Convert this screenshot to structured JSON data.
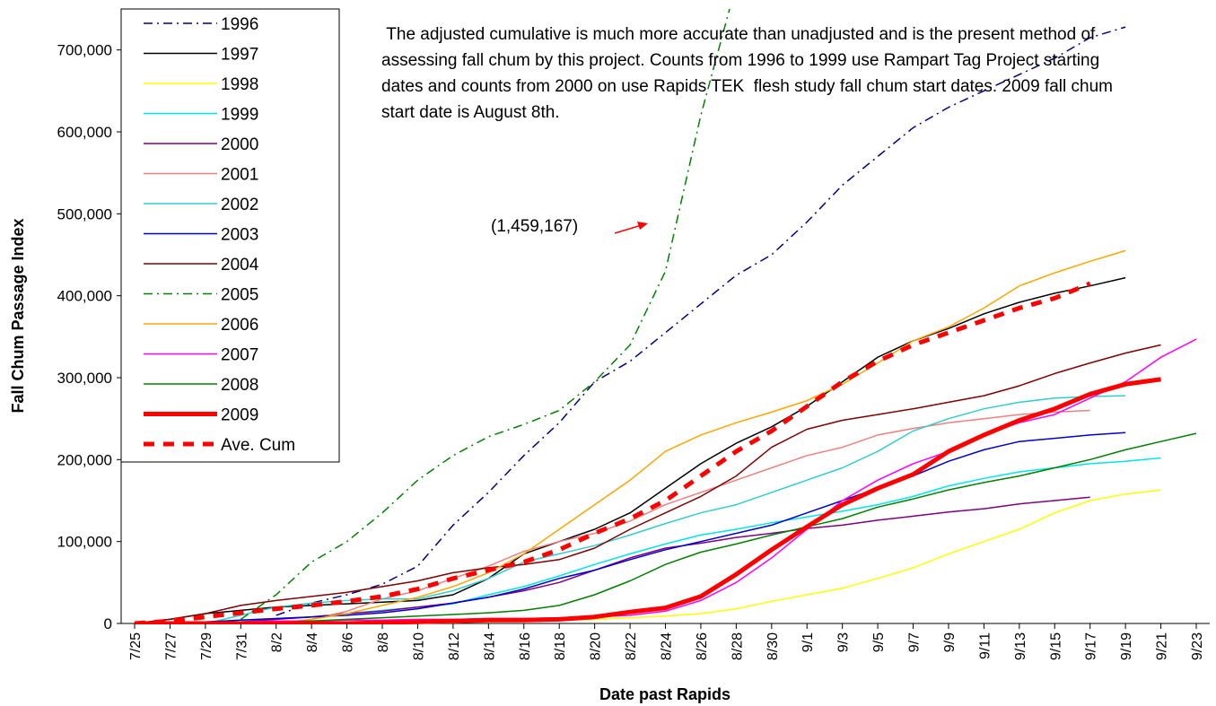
{
  "chart_data": {
    "type": "line",
    "y_label": "Fall Chum Passage Index",
    "x_label": "Date past Rapids",
    "annotations": [
      " The adjusted cumulative is much more accurate than unadjusted and is the present method of assessing fall chum by this project. Counts from 1996 to 1999 use Rampart Tag Project starting dates and counts from 2000 on use Rapids TEK  flesh study fall chum start dates. 2009 fall chum start date is August 8th.",
      "(1,459,167)"
    ],
    "categories": [
      "7/25",
      "7/27",
      "7/29",
      "7/31",
      "8/2",
      "8/4",
      "8/6",
      "8/8",
      "8/10",
      "8/12",
      "8/14",
      "8/16",
      "8/18",
      "8/20",
      "8/22",
      "8/24",
      "8/26",
      "8/28",
      "8/30",
      "9/1",
      "9/3",
      "9/5",
      "9/7",
      "9/9",
      "9/11",
      "9/13",
      "9/15",
      "9/17",
      "9/19",
      "9/21",
      "9/23"
    ],
    "ylim": [
      0,
      750000
    ],
    "yticks": [
      0,
      {
        "value": 100000,
        "label": "100,000"
      },
      {
        "value": 200000,
        "label": "200,000"
      },
      {
        "value": 300000,
        "label": "300,000"
      },
      {
        "value": 400000,
        "label": "400,000"
      },
      {
        "value": 500000,
        "label": "500,000"
      },
      {
        "value": 600000,
        "label": "600,000"
      },
      {
        "value": 700000,
        "label": "700,000"
      }
    ],
    "grid": false,
    "legend": "upper left",
    "series": [
      {
        "name": "1996",
        "color": "#000080",
        "style": "dashdot",
        "line_width": 1.5,
        "values": [
          null,
          null,
          null,
          null,
          10000,
          25000,
          35000,
          48000,
          70000,
          120000,
          160000,
          205000,
          245000,
          295000,
          320000,
          355000,
          390000,
          425000,
          450000,
          490000,
          535000,
          570000,
          605000,
          630000,
          650000,
          670000,
          690000,
          715000,
          728000,
          null,
          null
        ]
      },
      {
        "name": "1997",
        "color": "#000000",
        "style": "solid",
        "line_width": 1.5,
        "values": [
          0,
          5000,
          12000,
          16000,
          20000,
          22000,
          24000,
          26000,
          28000,
          35000,
          55000,
          85000,
          100000,
          115000,
          135000,
          165000,
          195000,
          220000,
          240000,
          265000,
          295000,
          325000,
          345000,
          360000,
          378000,
          392000,
          403000,
          412000,
          422000,
          null,
          null
        ]
      },
      {
        "name": "1998",
        "color": "#ffff00",
        "style": "solid",
        "line_width": 1.5,
        "values": [
          null,
          null,
          null,
          0,
          0,
          0,
          0,
          0,
          1000,
          1000,
          2000,
          3000,
          4000,
          5000,
          7000,
          9000,
          12000,
          18000,
          27000,
          35000,
          43000,
          55000,
          68000,
          85000,
          100000,
          115000,
          135000,
          150000,
          158000,
          163000,
          null
        ]
      },
      {
        "name": "1999",
        "color": "#00e5e5",
        "style": "solid",
        "line_width": 1.5,
        "values": [
          null,
          0,
          2000,
          4000,
          6000,
          8000,
          12000,
          16000,
          20000,
          24000,
          35000,
          45000,
          58000,
          72000,
          85000,
          97000,
          108000,
          115000,
          123000,
          130000,
          137000,
          145000,
          155000,
          168000,
          177000,
          185000,
          190000,
          195000,
          198000,
          202000,
          null
        ]
      },
      {
        "name": "2000",
        "color": "#800080",
        "style": "solid",
        "line_width": 1.5,
        "values": [
          null,
          null,
          0,
          2000,
          5000,
          8000,
          12000,
          15000,
          20000,
          25000,
          32000,
          40000,
          50000,
          65000,
          80000,
          92000,
          98000,
          105000,
          110000,
          116000,
          120000,
          126000,
          131000,
          136000,
          140000,
          146000,
          150000,
          154000,
          null,
          null,
          null
        ]
      },
      {
        "name": "2001",
        "color": "#f08080",
        "style": "solid",
        "line_width": 1.5,
        "values": [
          null,
          null,
          null,
          null,
          0,
          5000,
          15000,
          30000,
          40000,
          55000,
          70000,
          88000,
          100000,
          110000,
          125000,
          145000,
          160000,
          175000,
          190000,
          205000,
          215000,
          230000,
          238000,
          245000,
          250000,
          255000,
          258000,
          260000,
          null,
          null,
          null
        ]
      },
      {
        "name": "2002",
        "color": "#33cccc",
        "style": "solid",
        "line_width": 1.5,
        "values": [
          null,
          null,
          0,
          10000,
          20000,
          25000,
          28000,
          30000,
          30000,
          40000,
          55000,
          75000,
          85000,
          95000,
          108000,
          122000,
          135000,
          145000,
          160000,
          175000,
          190000,
          210000,
          235000,
          250000,
          262000,
          270000,
          275000,
          277000,
          278000,
          null,
          null
        ]
      },
      {
        "name": "2003",
        "color": "#0000cc",
        "style": "solid",
        "line_width": 1.5,
        "values": [
          null,
          0,
          2000,
          4000,
          6000,
          8000,
          10000,
          13000,
          18000,
          25000,
          32000,
          42000,
          55000,
          65000,
          78000,
          90000,
          100000,
          110000,
          120000,
          135000,
          150000,
          165000,
          180000,
          198000,
          212000,
          222000,
          226000,
          230000,
          233000,
          null,
          null
        ]
      },
      {
        "name": "2004",
        "color": "#800000",
        "style": "solid",
        "line_width": 1.5,
        "values": [
          0,
          5000,
          12000,
          22000,
          28000,
          33000,
          38000,
          45000,
          52000,
          62000,
          68000,
          72000,
          78000,
          92000,
          115000,
          135000,
          155000,
          180000,
          215000,
          237000,
          248000,
          255000,
          262000,
          270000,
          278000,
          290000,
          305000,
          318000,
          330000,
          340000,
          null
        ]
      },
      {
        "name": "2005",
        "color": "#008000",
        "style": "dashdot",
        "line_width": 1.5,
        "values": [
          null,
          null,
          null,
          5000,
          35000,
          75000,
          100000,
          135000,
          175000,
          205000,
          228000,
          243000,
          260000,
          295000,
          340000,
          430000,
          620000,
          780000,
          null,
          null,
          null,
          null,
          null,
          null,
          null,
          null,
          null,
          null,
          null,
          null,
          null
        ]
      },
      {
        "name": "2006",
        "color": "#ffa500",
        "style": "solid",
        "line_width": 1.5,
        "values": [
          null,
          null,
          null,
          null,
          0,
          5000,
          12000,
          22000,
          32000,
          45000,
          62000,
          85000,
          115000,
          145000,
          175000,
          210000,
          230000,
          245000,
          258000,
          272000,
          292000,
          318000,
          345000,
          362000,
          385000,
          412000,
          428000,
          442000,
          455000,
          null,
          null
        ]
      },
      {
        "name": "2007",
        "color": "#ff00ff",
        "style": "solid",
        "line_width": 1.5,
        "values": [
          null,
          0,
          1000,
          2000,
          3000,
          3000,
          4000,
          4000,
          5000,
          5000,
          6000,
          6000,
          7000,
          8000,
          10000,
          15000,
          28000,
          50000,
          80000,
          115000,
          150000,
          175000,
          195000,
          210000,
          230000,
          245000,
          255000,
          275000,
          295000,
          325000,
          347000
        ]
      },
      {
        "name": "2008",
        "color": "#008000",
        "style": "solid",
        "line_width": 1.5,
        "values": [
          null,
          null,
          null,
          0,
          1000,
          3000,
          5000,
          7000,
          9000,
          11000,
          13000,
          16000,
          22000,
          35000,
          52000,
          72000,
          87000,
          97000,
          108000,
          118000,
          128000,
          142000,
          152000,
          163000,
          172000,
          180000,
          190000,
          200000,
          212000,
          222000,
          232000
        ]
      },
      {
        "name": "2009",
        "color": "#ff0000",
        "style": "solid",
        "line_width": 5,
        "values": [
          0,
          0,
          0,
          0,
          0,
          0,
          0,
          1000,
          2000,
          3000,
          4000,
          4000,
          5000,
          8000,
          14000,
          19000,
          33000,
          60000,
          90000,
          118000,
          145000,
          165000,
          182000,
          210000,
          230000,
          248000,
          262000,
          280000,
          292000,
          298000,
          null
        ]
      },
      {
        "name": "Ave. Cum",
        "color": "#ff0000",
        "style": "dashed",
        "line_width": 5,
        "values": [
          0,
          3000,
          8000,
          13000,
          18000,
          22000,
          27000,
          33000,
          42000,
          55000,
          65000,
          75000,
          90000,
          110000,
          128000,
          150000,
          180000,
          210000,
          235000,
          265000,
          295000,
          320000,
          340000,
          355000,
          370000,
          385000,
          397000,
          415000,
          null,
          null,
          null
        ]
      }
    ]
  }
}
